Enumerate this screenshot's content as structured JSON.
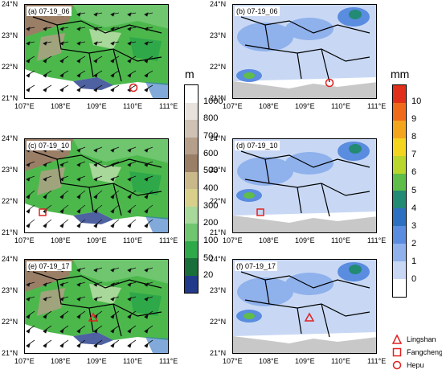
{
  "panels": {
    "a": {
      "title": "(a) 07-19_06"
    },
    "b": {
      "title": "(b) 07-19_06"
    },
    "c": {
      "title": "(c) 07-19_10"
    },
    "d": {
      "title": "(d) 07-19_10"
    },
    "e": {
      "title": "(e) 07-19_17"
    },
    "f": {
      "title": "(f) 07-19_17"
    }
  },
  "lat_labels": [
    "24°N",
    "23°N",
    "22°N",
    "21°N"
  ],
  "lon_labels": [
    "107°E",
    "108°E",
    "109°E",
    "110°E",
    "111°E"
  ],
  "terrain_colorbar": {
    "unit": "m",
    "ticks": [
      "1000",
      "800",
      "700",
      "600",
      "500",
      "400",
      "300",
      "200",
      "100",
      "50",
      "20"
    ],
    "colors": [
      "#ffffff",
      "#e8e2dc",
      "#cfc2b4",
      "#b59f8a",
      "#9a7e66",
      "#c9b88a",
      "#d8d08a",
      "#a8d89a",
      "#6fc66f",
      "#2fa84a",
      "#1a6e3a",
      "#223a8a"
    ]
  },
  "rain_colorbar": {
    "unit": "mm",
    "ticks": [
      "10",
      "9",
      "8",
      "7",
      "6",
      "5",
      "4",
      "3",
      "2",
      "1",
      "0"
    ],
    "colors": [
      "#e0301c",
      "#f06a1c",
      "#f4a51e",
      "#f3d51f",
      "#b8d62c",
      "#5fbd4a",
      "#238a73",
      "#2d6fc0",
      "#5a8ce0",
      "#8fb1ec",
      "#c8d8f4",
      "#ffffff"
    ]
  },
  "legend": {
    "items": [
      {
        "symbol": "triangle",
        "label": "Lingshan"
      },
      {
        "symbol": "square",
        "label": "Fangcheng"
      },
      {
        "symbol": "circle",
        "label": "Hepu"
      }
    ],
    "marker_color": "#e02020"
  }
}
